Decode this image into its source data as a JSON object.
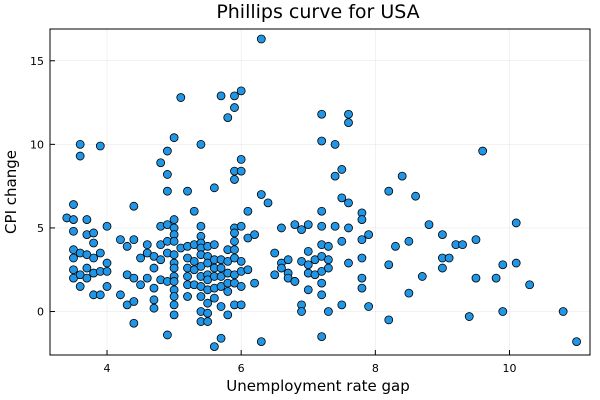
{
  "chart_data": {
    "type": "scatter",
    "title": "Phillips curve for USA",
    "xlabel": "Unemployment rate gap",
    "ylabel": "CPI change",
    "xlim": [
      3.15,
      11.2
    ],
    "ylim": [
      -2.6,
      16.9
    ],
    "xticks": [
      4,
      6,
      8,
      10
    ],
    "yticks": [
      0,
      5,
      10,
      15
    ],
    "grid": true,
    "legend": false,
    "marker_color": "#2196e6",
    "marker_edge_color": "#000000",
    "points": [
      [
        3.4,
        5.6
      ],
      [
        3.5,
        6.4
      ],
      [
        3.5,
        5.5
      ],
      [
        3.5,
        4.8
      ],
      [
        3.5,
        3.7
      ],
      [
        3.5,
        3.2
      ],
      [
        3.5,
        2.5
      ],
      [
        3.5,
        2.0
      ],
      [
        3.6,
        10.0
      ],
      [
        3.6,
        9.3
      ],
      [
        3.6,
        3.5
      ],
      [
        3.6,
        2.2
      ],
      [
        3.6,
        1.5
      ],
      [
        3.7,
        5.5
      ],
      [
        3.7,
        4.6
      ],
      [
        3.7,
        3.4
      ],
      [
        3.7,
        2.6
      ],
      [
        3.7,
        2.0
      ],
      [
        3.8,
        4.7
      ],
      [
        3.8,
        4.1
      ],
      [
        3.8,
        3.2
      ],
      [
        3.8,
        2.3
      ],
      [
        3.8,
        1.0
      ],
      [
        3.9,
        9.9
      ],
      [
        3.9,
        3.5
      ],
      [
        3.9,
        2.4
      ],
      [
        3.9,
        1.0
      ],
      [
        4.0,
        5.1
      ],
      [
        4.0,
        2.9
      ],
      [
        4.0,
        2.4
      ],
      [
        4.0,
        1.5
      ],
      [
        4.2,
        4.3
      ],
      [
        4.2,
        1.0
      ],
      [
        4.3,
        3.9
      ],
      [
        4.3,
        2.2
      ],
      [
        4.3,
        0.4
      ],
      [
        4.4,
        6.3
      ],
      [
        4.4,
        4.3
      ],
      [
        4.4,
        2.0
      ],
      [
        4.4,
        0.6
      ],
      [
        4.4,
        -0.7
      ],
      [
        4.5,
        3.2
      ],
      [
        4.5,
        1.6
      ],
      [
        4.6,
        4.0
      ],
      [
        4.6,
        3.5
      ],
      [
        4.6,
        2.0
      ],
      [
        4.7,
        3.3
      ],
      [
        4.7,
        2.6
      ],
      [
        4.7,
        1.4
      ],
      [
        4.7,
        0.7
      ],
      [
        4.7,
        0.2
      ],
      [
        4.8,
        8.9
      ],
      [
        4.8,
        5.1
      ],
      [
        4.8,
        4.0
      ],
      [
        4.8,
        3.1
      ],
      [
        4.8,
        1.9
      ],
      [
        4.9,
        9.6
      ],
      [
        4.9,
        8.2
      ],
      [
        4.9,
        7.2
      ],
      [
        4.9,
        5.2
      ],
      [
        4.9,
        4.2
      ],
      [
        4.9,
        3.5
      ],
      [
        4.9,
        1.8
      ],
      [
        4.9,
        -1.4
      ],
      [
        5.0,
        10.4
      ],
      [
        5.0,
        5.5
      ],
      [
        5.0,
        5.0
      ],
      [
        5.0,
        4.6
      ],
      [
        5.0,
        4.2
      ],
      [
        5.0,
        3.4
      ],
      [
        5.0,
        2.9
      ],
      [
        5.0,
        2.6
      ],
      [
        5.0,
        2.1
      ],
      [
        5.0,
        1.8
      ],
      [
        5.0,
        1.3
      ],
      [
        5.0,
        0.9
      ],
      [
        5.0,
        0.4
      ],
      [
        5.0,
        -0.2
      ],
      [
        5.1,
        12.8
      ],
      [
        5.1,
        3.8
      ],
      [
        5.2,
        7.2
      ],
      [
        5.2,
        3.9
      ],
      [
        5.2,
        3.2
      ],
      [
        5.2,
        2.6
      ],
      [
        5.2,
        2.1
      ],
      [
        5.2,
        1.6
      ],
      [
        5.2,
        0.9
      ],
      [
        5.3,
        6.0
      ],
      [
        5.3,
        4.0
      ],
      [
        5.3,
        3.0
      ],
      [
        5.3,
        2.5
      ],
      [
        5.3,
        1.6
      ],
      [
        5.4,
        10.0
      ],
      [
        5.4,
        5.1
      ],
      [
        5.4,
        4.5
      ],
      [
        5.4,
        4.1
      ],
      [
        5.4,
        3.8
      ],
      [
        5.4,
        3.4
      ],
      [
        5.4,
        2.7
      ],
      [
        5.4,
        2.1
      ],
      [
        5.4,
        1.5
      ],
      [
        5.4,
        0.9
      ],
      [
        5.4,
        0.0
      ],
      [
        5.4,
        -0.6
      ],
      [
        5.5,
        3.9
      ],
      [
        5.5,
        3.3
      ],
      [
        5.5,
        2.9
      ],
      [
        5.5,
        2.2
      ],
      [
        5.5,
        1.9
      ],
      [
        5.5,
        1.3
      ],
      [
        5.5,
        0.5
      ],
      [
        5.5,
        -0.1
      ],
      [
        5.5,
        -0.6
      ],
      [
        5.6,
        7.4
      ],
      [
        5.6,
        4.0
      ],
      [
        5.6,
        3.1
      ],
      [
        5.6,
        2.6
      ],
      [
        5.6,
        2.1
      ],
      [
        5.6,
        1.4
      ],
      [
        5.6,
        0.8
      ],
      [
        5.6,
        -2.1
      ],
      [
        5.7,
        12.9
      ],
      [
        5.7,
        3.1
      ],
      [
        5.7,
        2.6
      ],
      [
        5.7,
        2.1
      ],
      [
        5.7,
        1.5
      ],
      [
        5.7,
        0.3
      ],
      [
        5.7,
        -1.6
      ],
      [
        5.8,
        11.6
      ],
      [
        5.8,
        3.7
      ],
      [
        5.8,
        3.0
      ],
      [
        5.8,
        2.3
      ],
      [
        5.8,
        1.7
      ],
      [
        5.8,
        1.2
      ],
      [
        5.8,
        -0.2
      ],
      [
        5.9,
        12.9
      ],
      [
        5.9,
        12.2
      ],
      [
        5.9,
        8.4
      ],
      [
        5.9,
        7.9
      ],
      [
        5.9,
        5.0
      ],
      [
        5.9,
        4.7
      ],
      [
        5.9,
        4.2
      ],
      [
        5.9,
        3.7
      ],
      [
        5.9,
        3.2
      ],
      [
        5.9,
        2.2
      ],
      [
        5.9,
        1.7
      ],
      [
        5.9,
        0.4
      ],
      [
        6.0,
        13.2
      ],
      [
        6.0,
        9.1
      ],
      [
        6.0,
        8.4
      ],
      [
        6.0,
        5.1
      ],
      [
        6.0,
        3.0
      ],
      [
        6.0,
        2.4
      ],
      [
        6.0,
        1.5
      ],
      [
        6.0,
        0.4
      ],
      [
        6.1,
        6.0
      ],
      [
        6.1,
        4.4
      ],
      [
        6.1,
        2.5
      ],
      [
        6.2,
        4.6
      ],
      [
        6.2,
        1.7
      ],
      [
        6.3,
        16.3
      ],
      [
        6.3,
        7.0
      ],
      [
        6.3,
        -1.8
      ],
      [
        6.4,
        6.5
      ],
      [
        6.5,
        3.5
      ],
      [
        6.5,
        2.2
      ],
      [
        6.6,
        5.0
      ],
      [
        6.6,
        2.9
      ],
      [
        6.6,
        2.6
      ],
      [
        6.7,
        3.1
      ],
      [
        6.7,
        2.3
      ],
      [
        6.7,
        2.0
      ],
      [
        6.8,
        5.2
      ],
      [
        6.8,
        1.8
      ],
      [
        6.8,
        1.8
      ],
      [
        6.9,
        4.9
      ],
      [
        6.9,
        3.0
      ],
      [
        6.9,
        0.4
      ],
      [
        6.9,
        0.0
      ],
      [
        7.0,
        5.2
      ],
      [
        7.0,
        3.6
      ],
      [
        7.0,
        2.8
      ],
      [
        7.0,
        2.3
      ],
      [
        7.0,
        1.3
      ],
      [
        7.1,
        3.1
      ],
      [
        7.1,
        2.2
      ],
      [
        7.2,
        11.8
      ],
      [
        7.2,
        10.2
      ],
      [
        7.2,
        6.0
      ],
      [
        7.2,
        5.1
      ],
      [
        7.2,
        4.0
      ],
      [
        7.2,
        3.3
      ],
      [
        7.2,
        2.4
      ],
      [
        7.2,
        1.7
      ],
      [
        7.2,
        1.0
      ],
      [
        7.2,
        -1.5
      ],
      [
        7.3,
        3.9
      ],
      [
        7.3,
        3.1
      ],
      [
        7.3,
        2.6
      ],
      [
        7.3,
        0.0
      ],
      [
        7.4,
        10.0
      ],
      [
        7.4,
        8.1
      ],
      [
        7.4,
        5.1
      ],
      [
        7.5,
        8.5
      ],
      [
        7.5,
        6.8
      ],
      [
        7.5,
        4.2
      ],
      [
        7.5,
        0.4
      ],
      [
        7.6,
        11.8
      ],
      [
        7.6,
        11.3
      ],
      [
        7.6,
        6.5
      ],
      [
        7.6,
        5.0
      ],
      [
        7.6,
        2.9
      ],
      [
        7.8,
        5.9
      ],
      [
        7.8,
        5.5
      ],
      [
        7.8,
        4.3
      ],
      [
        7.8,
        3.2
      ],
      [
        7.8,
        2.0
      ],
      [
        7.8,
        1.4
      ],
      [
        7.9,
        4.6
      ],
      [
        7.9,
        0.3
      ],
      [
        8.2,
        7.2
      ],
      [
        8.2,
        2.8
      ],
      [
        8.2,
        -0.5
      ],
      [
        8.3,
        3.9
      ],
      [
        8.4,
        8.1
      ],
      [
        8.5,
        4.2
      ],
      [
        8.5,
        1.1
      ],
      [
        8.6,
        6.9
      ],
      [
        8.7,
        2.1
      ],
      [
        8.8,
        5.2
      ],
      [
        9.0,
        4.6
      ],
      [
        9.0,
        3.2
      ],
      [
        9.0,
        2.6
      ],
      [
        9.1,
        3.2
      ],
      [
        9.2,
        4.0
      ],
      [
        9.3,
        4.0
      ],
      [
        9.4,
        -0.3
      ],
      [
        9.5,
        4.3
      ],
      [
        9.5,
        2.0
      ],
      [
        9.6,
        9.6
      ],
      [
        9.8,
        2.0
      ],
      [
        9.9,
        2.8
      ],
      [
        9.9,
        0.0
      ],
      [
        10.1,
        5.3
      ],
      [
        10.1,
        2.9
      ],
      [
        10.3,
        1.6
      ],
      [
        10.8,
        0.0
      ],
      [
        11.0,
        -1.8
      ]
    ]
  }
}
